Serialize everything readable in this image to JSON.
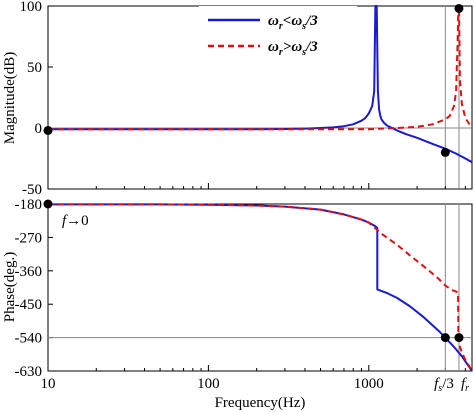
{
  "chart_data": [
    {
      "type": "line",
      "panel": "magnitude",
      "ylabel": "Magnitude(dB)",
      "xscale": "log",
      "xlim": [
        10,
        4400
      ],
      "ylim": [
        -50,
        100
      ],
      "y_ticks": [
        100,
        50,
        0,
        -50
      ],
      "y_tick_labels": [
        "100",
        "50",
        "0",
        "-50"
      ],
      "grid": false,
      "legend_position": "top-right",
      "series": [
        {
          "name": "ωr<ωs/3",
          "color": "#1a1ad0",
          "style": "solid",
          "x": [
            10,
            50,
            100,
            200,
            300,
            400,
            500,
            600,
            700,
            800,
            900,
            950,
            1000,
            1050,
            1080,
            1100,
            1120,
            1140,
            1160,
            1180,
            1200,
            1250,
            1300,
            1400,
            1500,
            1700,
            2000,
            2500,
            3000,
            3500,
            4000,
            4400
          ],
          "y": [
            -1,
            -1,
            -1,
            -1,
            -0.8,
            -0.5,
            0,
            0.5,
            1.5,
            3,
            6,
            8,
            12,
            18,
            30,
            100,
            100,
            30,
            15,
            10,
            7,
            4,
            2,
            0,
            -2,
            -5,
            -8,
            -13,
            -17,
            -21,
            -25,
            -28
          ]
        },
        {
          "name": "ωr>ωs/3",
          "color": "#dd1111",
          "style": "dashed",
          "x": [
            10,
            100,
            500,
            1000,
            1500,
            2000,
            2500,
            3000,
            3200,
            3400,
            3500,
            3580,
            3620,
            3650,
            3700,
            3800,
            4000,
            4400
          ],
          "y": [
            -1,
            -1,
            -1,
            -1,
            0,
            1,
            3,
            7,
            10,
            18,
            30,
            70,
            100,
            100,
            40,
            20,
            8,
            0
          ]
        }
      ],
      "points": [
        {
          "x": 10,
          "y": -2
        },
        {
          "x": 3000,
          "y": -20
        },
        {
          "x": 3650,
          "y": 98
        }
      ]
    },
    {
      "type": "line",
      "panel": "phase",
      "xlabel": "Frequency(Hz)",
      "ylabel": "Phase(deg.)",
      "xscale": "log",
      "xlim": [
        10,
        4400
      ],
      "ylim": [
        -630,
        -180
      ],
      "y_ticks": [
        -180,
        -270,
        -360,
        -450,
        -540,
        -630
      ],
      "y_tick_labels": [
        "-180",
        "-270",
        "-360",
        "-450",
        "-540",
        "-630"
      ],
      "x_ticks": [
        10,
        100,
        1000
      ],
      "x_tick_labels": [
        "10",
        "100",
        "1000"
      ],
      "marker_lines": [
        {
          "x": 3000,
          "label": "fs/3"
        },
        {
          "x": 3650,
          "label": "fr"
        }
      ],
      "annotation": "f→0",
      "series": [
        {
          "name": "ωr<ωs/3",
          "color": "#1a1ad0",
          "style": "solid",
          "x": [
            10,
            50,
            100,
            200,
            300,
            500,
            700,
            900,
            1000,
            1100,
            1130,
            1130.5,
            1300,
            1500,
            1800,
            2200,
            2700,
            3000,
            3400,
            3800,
            4400
          ],
          "y": [
            -181,
            -181,
            -182,
            -184,
            -187,
            -195,
            -208,
            -222,
            -230,
            -240,
            -245,
            -410,
            -420,
            -433,
            -455,
            -485,
            -520,
            -540,
            -565,
            -590,
            -630
          ]
        },
        {
          "name": "ωr>ωs/3",
          "color": "#dd1111",
          "style": "dashed",
          "x": [
            10,
            50,
            100,
            200,
            300,
            500,
            700,
            900,
            1000,
            1200,
            1500,
            1800,
            2200,
            2700,
            3000,
            3300,
            3600,
            3620,
            3640,
            3700,
            3850,
            4000,
            4200,
            4400
          ],
          "y": [
            -181,
            -181,
            -182,
            -184,
            -187,
            -195,
            -208,
            -222,
            -230,
            -260,
            -290,
            -318,
            -348,
            -380,
            -400,
            -412,
            -418,
            -540,
            -545,
            -565,
            -585,
            -600,
            -615,
            -630
          ]
        }
      ],
      "points": [
        {
          "x": 10,
          "y": -180
        },
        {
          "x": 3000,
          "y": -540
        },
        {
          "x": 3650,
          "y": -540
        }
      ]
    }
  ],
  "text": {
    "annot_f": "f",
    "annot_arrow": "→0",
    "fs_main": "f",
    "fs_sub": "s",
    "fs_tail": "/3",
    "fr_main": "f",
    "fr_sub": "r",
    "leg1_a": "ω",
    "leg1_sub_a": "r",
    "leg1_mid": "<ω",
    "leg1_sub_b": "s",
    "leg1_tail": "/3",
    "leg2_a": "ω",
    "leg2_sub_a": "r",
    "leg2_mid": ">ω",
    "leg2_sub_b": "s",
    "leg2_tail": "/3"
  }
}
